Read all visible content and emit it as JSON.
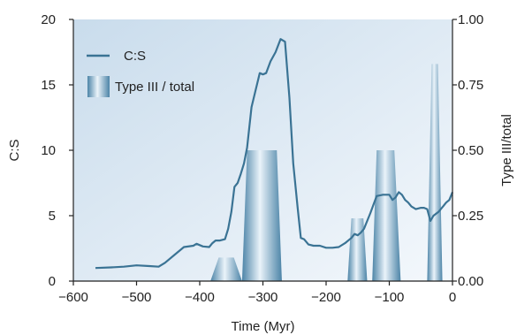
{
  "chart_data": {
    "type": "line",
    "xlabel": "Time (Myr)",
    "ylabel": "C:S",
    "y2label": "Type III/total",
    "xlim": [
      -600,
      0
    ],
    "ylim": [
      0,
      20
    ],
    "y2lim": [
      0,
      1.0
    ],
    "xticks": [
      -600,
      -500,
      -400,
      -300,
      -200,
      -100,
      0
    ],
    "xtick_labels": [
      "−600",
      "−500",
      "−400",
      "−300",
      "−200",
      "−100",
      "0"
    ],
    "yticks": [
      0,
      5,
      10,
      15,
      20
    ],
    "ytick_labels": [
      "0",
      "5",
      "10",
      "15",
      "20"
    ],
    "y2ticks": [
      0,
      0.25,
      0.5,
      0.75,
      1.0
    ],
    "y2tick_labels": [
      "0.00",
      "0.25",
      "0.50",
      "0.75",
      "1.00"
    ],
    "grid": false,
    "legend_position": "top-left",
    "legend": [
      {
        "label": "C:S",
        "kind": "line"
      },
      {
        "label": "Type III / total",
        "kind": "bar"
      }
    ],
    "colors": {
      "line": "#3a7394",
      "bar_dark": "#4c84a7",
      "bar_light": "#eaf3fa",
      "background_start": "#c9dcec",
      "background_end": "#f4f8fc",
      "axis": "#222222"
    },
    "series": [
      {
        "name": "C:S",
        "axis": "left",
        "x": [
          -565,
          -540,
          -520,
          -500,
          -480,
          -465,
          -455,
          -440,
          -425,
          -410,
          -405,
          -395,
          -385,
          -380,
          -375,
          -368,
          -360,
          -355,
          -350,
          -345,
          -340,
          -335,
          -330,
          -325,
          -318,
          -312,
          -305,
          -300,
          -295,
          -288,
          -280,
          -272,
          -265,
          -258,
          -252,
          -245,
          -240,
          -235,
          -228,
          -220,
          -210,
          -200,
          -190,
          -180,
          -170,
          -160,
          -155,
          -150,
          -145,
          -140,
          -130,
          -120,
          -110,
          -100,
          -95,
          -90,
          -85,
          -80,
          -75,
          -70,
          -65,
          -58,
          -50,
          -45,
          -40,
          -35,
          -30,
          -22,
          -15,
          -10,
          -5,
          0
        ],
        "y": [
          1.0,
          1.05,
          1.1,
          1.2,
          1.15,
          1.1,
          1.4,
          2.0,
          2.6,
          2.7,
          2.85,
          2.65,
          2.6,
          2.9,
          3.1,
          3.1,
          3.2,
          4.0,
          5.3,
          7.2,
          7.5,
          8.2,
          9.0,
          10.2,
          13.3,
          14.5,
          15.9,
          15.8,
          15.9,
          16.8,
          17.5,
          18.5,
          18.3,
          14.0,
          9.0,
          5.6,
          3.3,
          3.2,
          2.8,
          2.7,
          2.7,
          2.55,
          2.55,
          2.6,
          2.9,
          3.3,
          3.6,
          3.5,
          3.7,
          4.0,
          5.2,
          6.5,
          6.6,
          6.6,
          6.2,
          6.4,
          6.8,
          6.6,
          6.2,
          6.0,
          5.7,
          5.5,
          5.6,
          5.6,
          5.5,
          4.6,
          5.0,
          5.3,
          5.7,
          6.0,
          6.2,
          6.8
        ]
      },
      {
        "name": "Type III / total",
        "axis": "right",
        "type": "bar",
        "bars": [
          {
            "x_start": -383,
            "x_end": -333,
            "top_start": -370,
            "top_end": -346,
            "value": 0.09
          },
          {
            "x_start": -333,
            "x_end": -270,
            "top_start": -325,
            "top_end": -278,
            "value": 0.5
          },
          {
            "x_start": -166,
            "x_end": -135,
            "top_start": -160,
            "top_end": -141,
            "value": 0.24
          },
          {
            "x_start": -127,
            "x_end": -82,
            "top_start": -120,
            "top_end": -92,
            "value": 0.5
          },
          {
            "x_start": -40,
            "x_end": -16,
            "top_start": -33,
            "top_end": -23,
            "value": 0.83
          }
        ]
      }
    ]
  }
}
